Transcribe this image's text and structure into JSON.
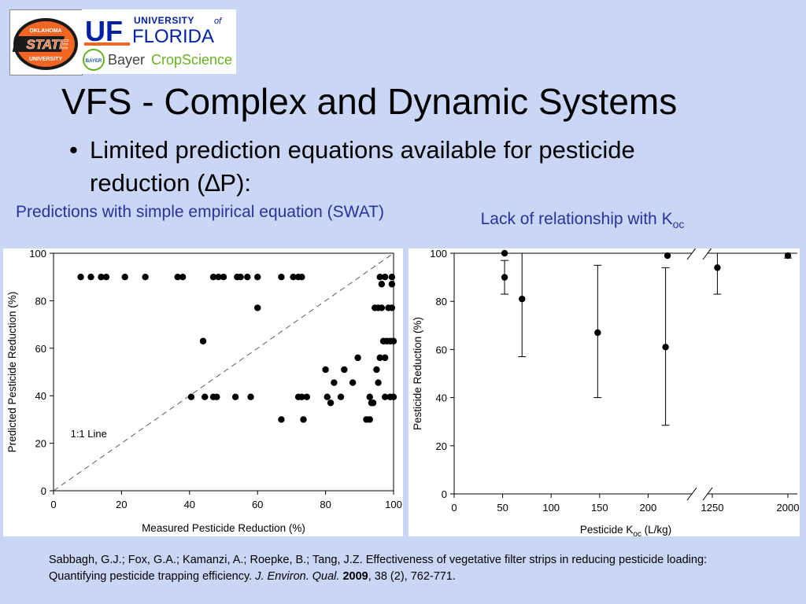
{
  "logos": {
    "osu": {
      "line1": "OKLAHOMA",
      "line2": "STATE",
      "line3": "UNIVERSITY"
    },
    "uf": {
      "mark": "UF",
      "university": "UNIVERSITY",
      "of": "of",
      "florida": "FLORIDA"
    },
    "bayer": {
      "seal": "BAYER",
      "name": "Bayer",
      "division": "CropScience"
    }
  },
  "slide": {
    "title": "VFS - Complex and Dynamic Systems",
    "bullet": "•",
    "bullet_text": "Limited prediction equations available for pesticide reduction (∆P):"
  },
  "captions": {
    "left": "Predictions with simple empirical equation (SWAT)",
    "right_main": "Lack of relationship with K",
    "right_sub": "oc"
  },
  "chart_data": [
    {
      "type": "scatter",
      "xlabel": "Measured Pesticide Reduction (%)",
      "ylabel": "Predicted Pesticide Reduction (%)",
      "xlim": [
        0,
        100
      ],
      "ylim": [
        0,
        100
      ],
      "xticks": [
        0,
        20,
        40,
        60,
        80,
        100
      ],
      "yticks": [
        0,
        20,
        40,
        60,
        80,
        100
      ],
      "reference_line": {
        "label": "1:1 Line",
        "from": [
          0,
          0
        ],
        "to": [
          100,
          100
        ],
        "style": "dashed"
      },
      "points": [
        [
          8,
          90
        ],
        [
          11,
          90
        ],
        [
          14,
          90
        ],
        [
          15.5,
          90
        ],
        [
          21,
          90
        ],
        [
          27,
          90
        ],
        [
          36.5,
          90
        ],
        [
          38,
          90
        ],
        [
          47,
          90
        ],
        [
          48.5,
          90
        ],
        [
          50,
          90
        ],
        [
          54,
          90
        ],
        [
          55,
          90
        ],
        [
          57,
          90
        ],
        [
          60,
          90
        ],
        [
          67,
          90
        ],
        [
          70.5,
          90
        ],
        [
          72,
          90
        ],
        [
          73,
          90
        ],
        [
          96,
          90
        ],
        [
          97.5,
          90
        ],
        [
          99.5,
          90
        ],
        [
          60,
          77
        ],
        [
          44,
          63
        ],
        [
          40.5,
          39.5
        ],
        [
          44.5,
          39.5
        ],
        [
          47,
          39.5
        ],
        [
          48,
          39.5
        ],
        [
          53.5,
          39.5
        ],
        [
          58,
          39.5
        ],
        [
          72,
          39.5
        ],
        [
          73,
          39.5
        ],
        [
          74.5,
          39.5
        ],
        [
          67,
          30
        ],
        [
          73.5,
          30
        ],
        [
          80,
          51
        ],
        [
          80.5,
          39.5
        ],
        [
          81.5,
          37
        ],
        [
          82.5,
          45.5
        ],
        [
          84.5,
          39.5
        ],
        [
          85.5,
          51
        ],
        [
          88,
          45.5
        ],
        [
          89.5,
          56
        ],
        [
          92,
          30
        ],
        [
          93,
          30
        ],
        [
          93,
          39.5
        ],
        [
          93.5,
          37
        ],
        [
          94,
          37
        ],
        [
          95,
          51
        ],
        [
          95.5,
          45.5
        ],
        [
          94.5,
          77
        ],
        [
          95.5,
          77
        ],
        [
          96.5,
          77
        ],
        [
          96,
          56
        ],
        [
          96.5,
          87
        ],
        [
          97,
          63
        ],
        [
          97.5,
          56
        ],
        [
          98,
          63
        ],
        [
          98.5,
          77
        ],
        [
          99,
          63
        ],
        [
          99.5,
          77
        ],
        [
          100,
          63
        ],
        [
          97.5,
          39.5
        ],
        [
          99,
          39.5
        ],
        [
          100,
          39.5
        ],
        [
          99.5,
          87
        ]
      ]
    },
    {
      "type": "scatter",
      "xlabel": "Pesticide K",
      "xlabel_sub": "oc",
      "xlabel_unit": " (L/kg)",
      "ylabel": "Pesticide Reduction (%)",
      "ylim": [
        0,
        100
      ],
      "yticks": [
        0,
        20,
        40,
        60,
        80,
        100
      ],
      "x_broken_axis": true,
      "xticks": [
        0,
        50,
        100,
        150,
        200,
        1250,
        2000
      ],
      "points": [
        {
          "x": 52,
          "y": 100,
          "err_low": null,
          "err_high": null
        },
        {
          "x": 52,
          "y": 90,
          "err_low": 83,
          "err_high": 97
        },
        {
          "x": 70,
          "y": 81,
          "err_low": 57,
          "err_high": 100
        },
        {
          "x": 148,
          "y": 67,
          "err_low": 40,
          "err_high": 95
        },
        {
          "x": 218,
          "y": 61,
          "err_low": 28.5,
          "err_high": 94
        },
        {
          "x": 220,
          "y": 99,
          "err_low": null,
          "err_high": null
        },
        {
          "x": 1300,
          "y": 94,
          "err_low": 83,
          "err_high": 100
        },
        {
          "x": 2000,
          "y": 99,
          "err_low": 98,
          "err_high": 100
        }
      ]
    }
  ],
  "citation": {
    "authors": "Sabbagh, G.J.; Fox, G.A.; Kamanzi, A.; Roepke, B.; Tang, J.Z. Effectiveness of vegetative filter strips in reducing pesticide loading: Quantifying pesticide trapping efficiency. ",
    "journal": "J. Environ. Qual.",
    "year": "2009",
    "rest": ", 38 (2), 762-771."
  },
  "colors": {
    "background": "#cad6f6",
    "caption": "#27349b",
    "osu_orange": "#f26522",
    "uf_blue": "#0021a5",
    "bayer_green": "#6ab023"
  }
}
